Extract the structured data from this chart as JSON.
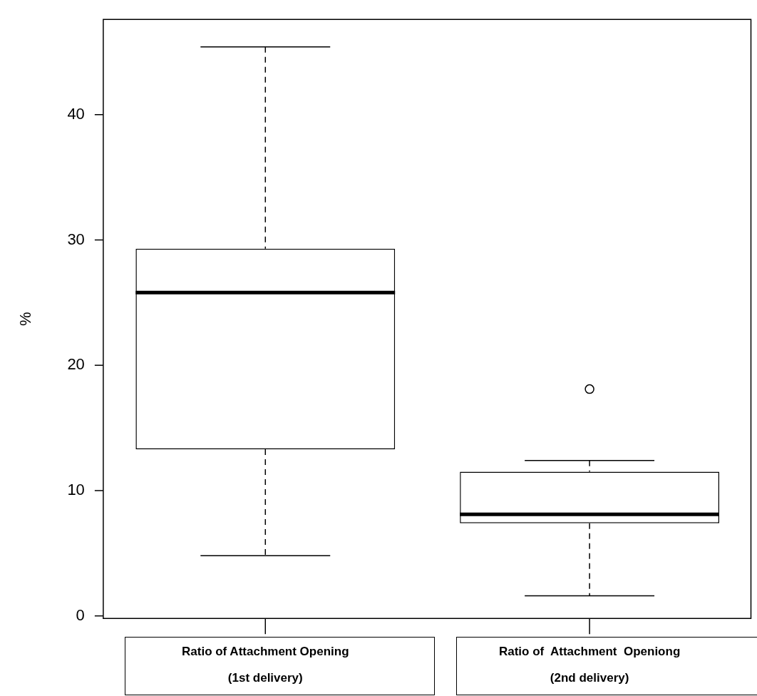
{
  "chart_data": {
    "type": "box",
    "ylabel": "%",
    "categories": [
      "Ratio of Attachment Opening (1st delivery)",
      "Ratio of  Attachment  Openiong (2nd delivery)"
    ],
    "boxes": [
      {
        "low": 4.8,
        "q1": 13.3,
        "median": 25.8,
        "q3": 29.3,
        "high": 45.4
      },
      {
        "low": 1.6,
        "q1": 7.4,
        "median": 8.1,
        "q3": 11.5,
        "high": 12.4,
        "outliers": [
          18.1
        ]
      }
    ],
    "ylim": [
      -0.2,
      47.6
    ],
    "yticks": [
      0,
      10,
      20,
      30,
      40
    ],
    "grid": false,
    "legend": false
  }
}
